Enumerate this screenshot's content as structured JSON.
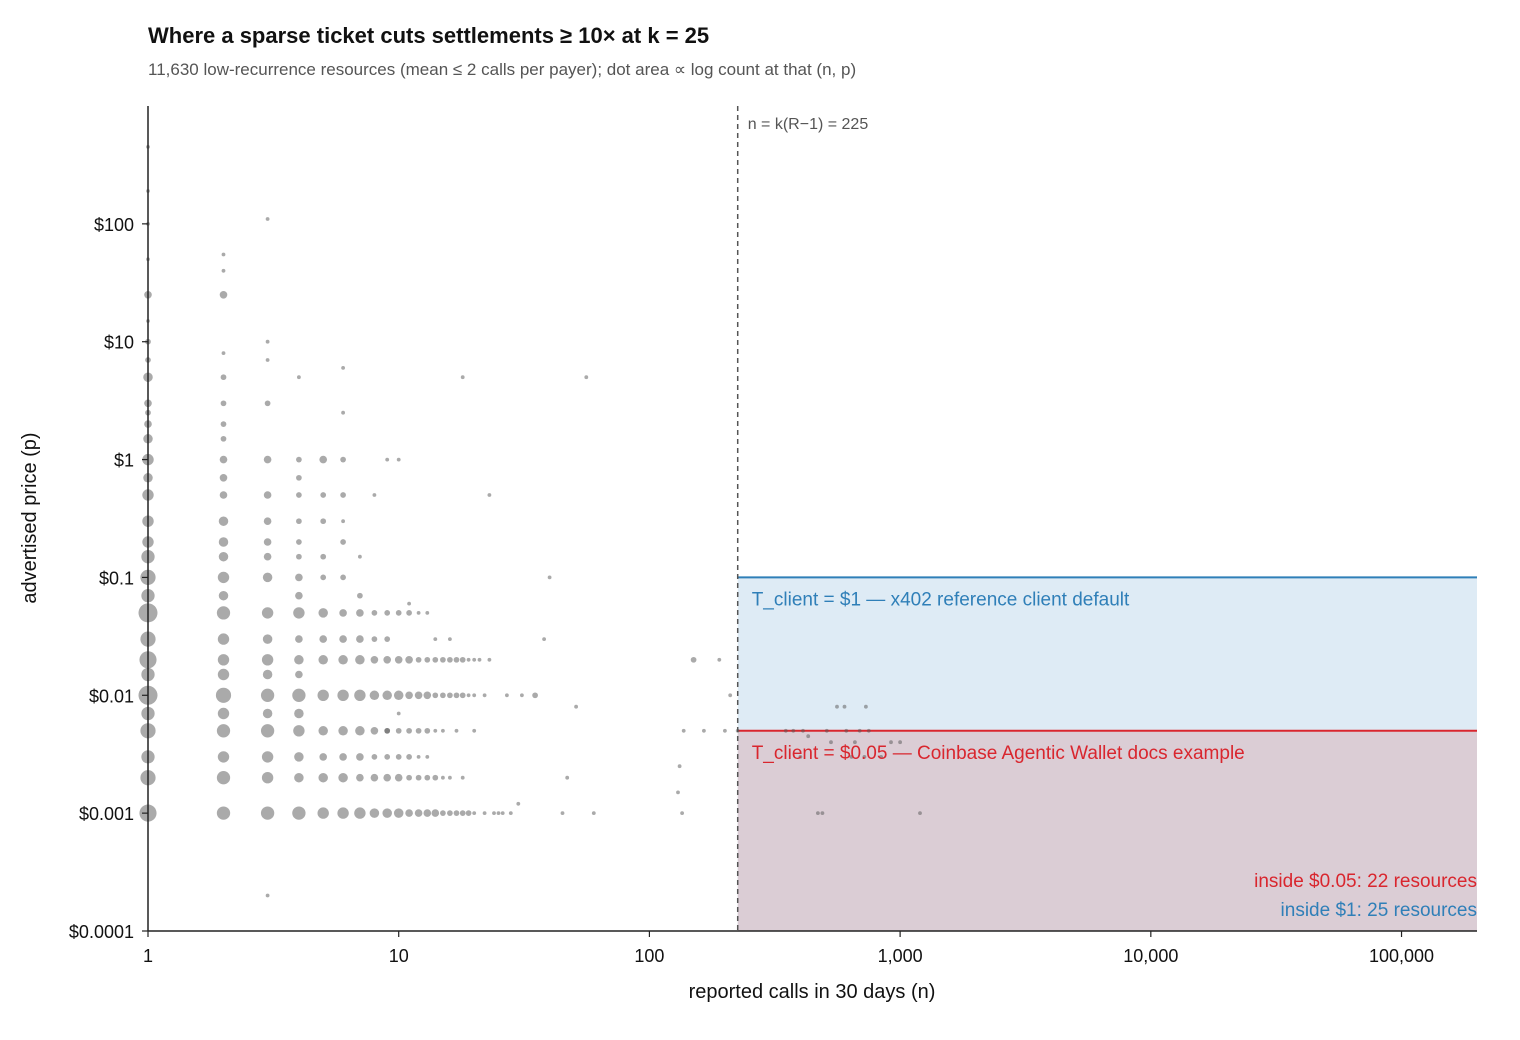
{
  "chart_data": {
    "type": "scatter",
    "title": "Where a sparse ticket cuts settlements ≥ 10× at k = 25",
    "subtitle": "11,630 low-recurrence resources (mean ≤ 2 calls per payer); dot area ∝ log count at that (n, p)",
    "xlabel": "reported calls in 30 days (n)",
    "ylabel": "advertised price (p)",
    "x_scale": "log",
    "y_scale": "log",
    "xlim": [
      1,
      200000
    ],
    "ylim": [
      0.0001,
      1000
    ],
    "x_ticks": [
      {
        "value": 1,
        "label": "1"
      },
      {
        "value": 10,
        "label": "10"
      },
      {
        "value": 100,
        "label": "100"
      },
      {
        "value": 1000,
        "label": "1,000"
      },
      {
        "value": 10000,
        "label": "10,000"
      },
      {
        "value": 100000,
        "label": "100,000"
      }
    ],
    "y_ticks": [
      {
        "value": 0.0001,
        "label": "$0.0001"
      },
      {
        "value": 0.001,
        "label": "$0.001"
      },
      {
        "value": 0.01,
        "label": "$0.01"
      },
      {
        "value": 0.1,
        "label": "$0.1"
      },
      {
        "value": 1,
        "label": "$1"
      },
      {
        "value": 10,
        "label": "$10"
      },
      {
        "value": 100,
        "label": "$100"
      }
    ],
    "grid": false,
    "vline": {
      "x": 225,
      "label": "n = k(R−1) = 225",
      "color": "#555555"
    },
    "regions": [
      {
        "name": "T_client = $1",
        "x_min": 225,
        "y_max": 0.1,
        "fill": "#deebf5",
        "line": "#2f7fb8",
        "label": "T_client = $1 — x402 reference client default",
        "color": "#2f7fb8"
      },
      {
        "name": "T_client = $0.05",
        "x_min": 225,
        "y_max": 0.005,
        "fill": "#dbcdd5",
        "line": "#d9262e",
        "label": "T_client = $0.05 — Coinbase Agentic Wallet docs example",
        "color": "#d9262e"
      }
    ],
    "counts": [
      {
        "text": "inside $0.05: 22 resources",
        "color": "#d9262e"
      },
      {
        "text": "inside $1: 25 resources",
        "color": "#2f7fb8"
      }
    ],
    "point_color": "#555555",
    "points": [
      [
        1,
        0.001,
        9
      ],
      [
        1,
        0.002,
        8
      ],
      [
        1,
        0.003,
        7
      ],
      [
        1,
        0.005,
        8
      ],
      [
        1,
        0.007,
        7
      ],
      [
        1,
        0.01,
        10
      ],
      [
        1,
        0.015,
        7
      ],
      [
        1,
        0.02,
        9
      ],
      [
        1,
        0.03,
        8
      ],
      [
        1,
        0.05,
        10
      ],
      [
        1,
        0.07,
        7
      ],
      [
        1,
        0.1,
        8
      ],
      [
        1,
        0.15,
        7
      ],
      [
        1,
        0.2,
        6
      ],
      [
        1,
        0.3,
        6
      ],
      [
        1,
        0.5,
        6
      ],
      [
        1,
        0.7,
        5
      ],
      [
        1,
        1,
        6
      ],
      [
        1,
        1.5,
        5
      ],
      [
        1,
        2,
        4
      ],
      [
        1,
        3,
        4
      ],
      [
        1,
        5,
        5
      ],
      [
        1,
        2.5,
        3
      ],
      [
        1,
        7,
        3
      ],
      [
        1,
        10,
        3
      ],
      [
        1,
        15,
        2
      ],
      [
        1,
        25,
        4
      ],
      [
        1,
        50,
        2
      ],
      [
        1,
        100,
        2
      ],
      [
        1,
        190,
        2
      ],
      [
        1,
        450,
        2
      ],
      [
        2,
        0.001,
        7
      ],
      [
        2,
        0.002,
        7
      ],
      [
        2,
        0.003,
        6
      ],
      [
        2,
        0.005,
        7
      ],
      [
        2,
        0.007,
        6
      ],
      [
        2,
        0.01,
        8
      ],
      [
        2,
        0.015,
        6
      ],
      [
        2,
        0.02,
        6
      ],
      [
        2,
        0.03,
        6
      ],
      [
        2,
        0.05,
        7
      ],
      [
        2,
        0.07,
        5
      ],
      [
        2,
        0.1,
        6
      ],
      [
        2,
        0.15,
        5
      ],
      [
        2,
        0.2,
        5
      ],
      [
        2,
        0.3,
        5
      ],
      [
        2,
        0.5,
        4
      ],
      [
        2,
        0.7,
        4
      ],
      [
        2,
        1,
        4
      ],
      [
        2,
        1.5,
        3
      ],
      [
        2,
        2,
        3
      ],
      [
        2,
        3,
        3
      ],
      [
        2,
        5,
        3
      ],
      [
        2,
        8,
        2
      ],
      [
        2,
        25,
        4
      ],
      [
        2,
        40,
        2
      ],
      [
        2,
        55,
        2
      ],
      [
        3,
        0.001,
        7
      ],
      [
        3,
        0.002,
        6
      ],
      [
        3,
        0.003,
        6
      ],
      [
        3,
        0.005,
        7
      ],
      [
        3,
        0.007,
        5
      ],
      [
        3,
        0.01,
        7
      ],
      [
        3,
        0.015,
        5
      ],
      [
        3,
        0.02,
        6
      ],
      [
        3,
        0.03,
        5
      ],
      [
        3,
        0.05,
        6
      ],
      [
        3,
        0.1,
        5
      ],
      [
        3,
        0.15,
        4
      ],
      [
        3,
        0.2,
        4
      ],
      [
        3,
        0.3,
        4
      ],
      [
        3,
        0.5,
        4
      ],
      [
        3,
        1,
        4
      ],
      [
        3,
        3,
        3
      ],
      [
        3,
        7,
        2
      ],
      [
        3,
        10,
        2
      ],
      [
        3,
        110,
        2
      ],
      [
        3,
        0.0002,
        2
      ],
      [
        4,
        0.001,
        7
      ],
      [
        4,
        0.002,
        5
      ],
      [
        4,
        0.003,
        5
      ],
      [
        4,
        0.005,
        6
      ],
      [
        4,
        0.007,
        5
      ],
      [
        4,
        0.01,
        7
      ],
      [
        4,
        0.015,
        4
      ],
      [
        4,
        0.02,
        5
      ],
      [
        4,
        0.03,
        4
      ],
      [
        4,
        0.05,
        6
      ],
      [
        4,
        0.07,
        4
      ],
      [
        4,
        0.1,
        4
      ],
      [
        4,
        0.15,
        3
      ],
      [
        4,
        0.2,
        3
      ],
      [
        4,
        0.3,
        3
      ],
      [
        4,
        0.5,
        3
      ],
      [
        4,
        0.7,
        3
      ],
      [
        4,
        1,
        3
      ],
      [
        4,
        5,
        2
      ],
      [
        5,
        0.001,
        6
      ],
      [
        5,
        0.002,
        5
      ],
      [
        5,
        0.003,
        4
      ],
      [
        5,
        0.005,
        5
      ],
      [
        5,
        0.01,
        6
      ],
      [
        5,
        0.02,
        5
      ],
      [
        5,
        0.03,
        4
      ],
      [
        5,
        0.05,
        5
      ],
      [
        5,
        0.1,
        3
      ],
      [
        5,
        0.15,
        3
      ],
      [
        5,
        0.3,
        3
      ],
      [
        5,
        0.5,
        3
      ],
      [
        5,
        1,
        4
      ],
      [
        6,
        0.001,
        6
      ],
      [
        6,
        0.002,
        5
      ],
      [
        6,
        0.003,
        4
      ],
      [
        6,
        0.005,
        5
      ],
      [
        6,
        0.01,
        6
      ],
      [
        6,
        0.02,
        5
      ],
      [
        6,
        0.03,
        4
      ],
      [
        6,
        0.05,
        4
      ],
      [
        6,
        0.1,
        3
      ],
      [
        6,
        0.2,
        3
      ],
      [
        6,
        0.3,
        2
      ],
      [
        6,
        0.5,
        3
      ],
      [
        6,
        1,
        3
      ],
      [
        6,
        2.5,
        2
      ],
      [
        6,
        6,
        2
      ],
      [
        7,
        0.001,
        6
      ],
      [
        7,
        0.002,
        4
      ],
      [
        7,
        0.003,
        4
      ],
      [
        7,
        0.005,
        5
      ],
      [
        7,
        0.01,
        6
      ],
      [
        7,
        0.02,
        5
      ],
      [
        7,
        0.03,
        4
      ],
      [
        7,
        0.05,
        4
      ],
      [
        7,
        0.07,
        3
      ],
      [
        7,
        0.15,
        2
      ],
      [
        8,
        0.001,
        5
      ],
      [
        8,
        0.002,
        4
      ],
      [
        8,
        0.003,
        3
      ],
      [
        8,
        0.005,
        4
      ],
      [
        8,
        0.01,
        5
      ],
      [
        8,
        0.02,
        4
      ],
      [
        8,
        0.03,
        3
      ],
      [
        8,
        0.05,
        3
      ],
      [
        8,
        0.5,
        2
      ],
      [
        9,
        0.001,
        5
      ],
      [
        9,
        0.002,
        4
      ],
      [
        9,
        0.01,
        5
      ],
      [
        9,
        0.02,
        4
      ],
      [
        9,
        0.003,
        3
      ],
      [
        9,
        0.005,
        3
      ],
      [
        9,
        0.03,
        3
      ],
      [
        9,
        0.05,
        3
      ],
      [
        9,
        0.005,
        3
      ],
      [
        9,
        1,
        2
      ],
      [
        10,
        0.001,
        5
      ],
      [
        10,
        0.002,
        4
      ],
      [
        10,
        0.01,
        5
      ],
      [
        10,
        0.02,
        4
      ],
      [
        10,
        0.003,
        3
      ],
      [
        10,
        0.005,
        3
      ],
      [
        10,
        0.05,
        3
      ],
      [
        10,
        0.007,
        2
      ],
      [
        10,
        1,
        2
      ],
      [
        11,
        0.001,
        4
      ],
      [
        11,
        0.002,
        3
      ],
      [
        11,
        0.01,
        4
      ],
      [
        11,
        0.02,
        4
      ],
      [
        11,
        0.003,
        3
      ],
      [
        11,
        0.005,
        3
      ],
      [
        11,
        0.05,
        3
      ],
      [
        11,
        0.06,
        2
      ],
      [
        12,
        0.001,
        4
      ],
      [
        12,
        0.002,
        3
      ],
      [
        12,
        0.01,
        4
      ],
      [
        12,
        0.02,
        3
      ],
      [
        12,
        0.005,
        3
      ],
      [
        12,
        0.003,
        2
      ],
      [
        12,
        0.05,
        2
      ],
      [
        13,
        0.001,
        4
      ],
      [
        13,
        0.002,
        3
      ],
      [
        13,
        0.01,
        4
      ],
      [
        13,
        0.02,
        3
      ],
      [
        13,
        0.005,
        3
      ],
      [
        13,
        0.003,
        2
      ],
      [
        13,
        0.05,
        2
      ],
      [
        14,
        0.001,
        4
      ],
      [
        14,
        0.002,
        3
      ],
      [
        14,
        0.01,
        3
      ],
      [
        14,
        0.02,
        3
      ],
      [
        14,
        0.005,
        2
      ],
      [
        14,
        0.03,
        2
      ],
      [
        15,
        0.001,
        3
      ],
      [
        15,
        0.01,
        3
      ],
      [
        15,
        0.02,
        3
      ],
      [
        15,
        0.002,
        2
      ],
      [
        15,
        0.005,
        2
      ],
      [
        16,
        0.001,
        3
      ],
      [
        16,
        0.01,
        3
      ],
      [
        16,
        0.02,
        3
      ],
      [
        16,
        0.002,
        2
      ],
      [
        16,
        0.03,
        2
      ],
      [
        17,
        0.001,
        3
      ],
      [
        17,
        0.01,
        3
      ],
      [
        17,
        0.02,
        3
      ],
      [
        17,
        0.005,
        2
      ],
      [
        18,
        0.001,
        3
      ],
      [
        18,
        0.01,
        3
      ],
      [
        18,
        0.02,
        3
      ],
      [
        18,
        0.002,
        2
      ],
      [
        18,
        5,
        2
      ],
      [
        19,
        0.001,
        3
      ],
      [
        19,
        0.01,
        2
      ],
      [
        19,
        0.02,
        2
      ],
      [
        20,
        0.001,
        2
      ],
      [
        20,
        0.01,
        2
      ],
      [
        20,
        0.02,
        2
      ],
      [
        20,
        0.005,
        2
      ],
      [
        21,
        0.02,
        2
      ],
      [
        22,
        0.001,
        2
      ],
      [
        22,
        0.01,
        2
      ],
      [
        23,
        0.5,
        2
      ],
      [
        23,
        0.02,
        2
      ],
      [
        24,
        0.001,
        2
      ],
      [
        25,
        0.001,
        2
      ],
      [
        26,
        0.001,
        2
      ],
      [
        27,
        0.01,
        2
      ],
      [
        28,
        0.001,
        2
      ],
      [
        30,
        0.0012,
        2
      ],
      [
        31,
        0.01,
        2
      ],
      [
        35,
        0.01,
        3
      ],
      [
        38,
        0.03,
        2
      ],
      [
        40,
        0.1,
        2
      ],
      [
        45,
        0.001,
        2
      ],
      [
        47,
        0.002,
        2
      ],
      [
        51,
        0.008,
        2
      ],
      [
        56,
        5,
        2
      ],
      [
        60,
        0.001,
        2
      ],
      [
        130,
        0.0015,
        2
      ],
      [
        132,
        0.0025,
        2
      ],
      [
        135,
        0.001,
        2
      ],
      [
        137,
        0.005,
        2
      ],
      [
        150,
        0.02,
        3
      ],
      [
        165,
        0.005,
        2
      ],
      [
        190,
        0.02,
        2
      ],
      [
        200,
        0.005,
        2
      ],
      [
        210,
        0.01,
        2
      ],
      [
        225,
        0.005,
        2
      ],
      [
        350,
        0.005,
        2
      ],
      [
        375,
        0.005,
        2
      ],
      [
        400,
        0.003,
        2
      ],
      [
        410,
        0.005,
        2
      ],
      [
        430,
        0.0045,
        2
      ],
      [
        470,
        0.001,
        2
      ],
      [
        490,
        0.001,
        2
      ],
      [
        510,
        0.005,
        2
      ],
      [
        530,
        0.004,
        2
      ],
      [
        560,
        0.008,
        2
      ],
      [
        600,
        0.008,
        2
      ],
      [
        610,
        0.005,
        2
      ],
      [
        640,
        0.003,
        2
      ],
      [
        660,
        0.004,
        2
      ],
      [
        690,
        0.005,
        2
      ],
      [
        720,
        0.003,
        2
      ],
      [
        730,
        0.008,
        2
      ],
      [
        750,
        0.005,
        2
      ],
      [
        840,
        0.003,
        2
      ],
      [
        920,
        0.004,
        2
      ],
      [
        1000,
        0.004,
        2
      ],
      [
        1200,
        0.001,
        2
      ]
    ]
  }
}
